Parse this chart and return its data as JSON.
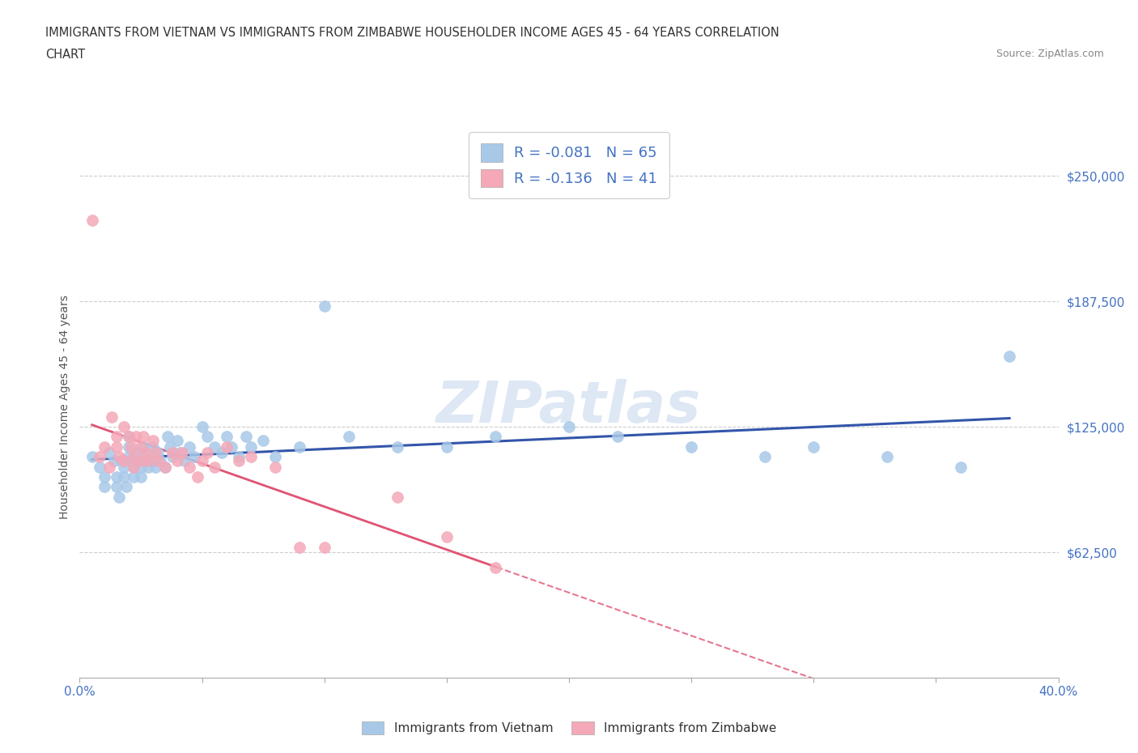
{
  "title_line1": "IMMIGRANTS FROM VIETNAM VS IMMIGRANTS FROM ZIMBABWE HOUSEHOLDER INCOME AGES 45 - 64 YEARS CORRELATION",
  "title_line2": "CHART",
  "source_text": "Source: ZipAtlas.com",
  "ylabel": "Householder Income Ages 45 - 64 years",
  "xlim": [
    0.0,
    0.4
  ],
  "ylim": [
    0,
    270000
  ],
  "color_vietnam": "#a8c8e8",
  "color_zimbabwe": "#f4a8b8",
  "line_color_vietnam": "#3355aa",
  "line_color_zimbabwe": "#e05575",
  "R_vietnam": -0.081,
  "N_vietnam": 65,
  "R_zimbabwe": -0.136,
  "N_zimbabwe": 41,
  "watermark": "ZIPatlas",
  "background_color": "#ffffff",
  "grid_color": "#cccccc",
  "vietnam_x": [
    0.005,
    0.008,
    0.01,
    0.01,
    0.012,
    0.014,
    0.015,
    0.015,
    0.016,
    0.017,
    0.018,
    0.018,
    0.019,
    0.02,
    0.02,
    0.02,
    0.021,
    0.022,
    0.022,
    0.023,
    0.024,
    0.025,
    0.025,
    0.026,
    0.027,
    0.028,
    0.03,
    0.03,
    0.031,
    0.032,
    0.033,
    0.035,
    0.036,
    0.037,
    0.038,
    0.04,
    0.041,
    0.043,
    0.045,
    0.047,
    0.05,
    0.052,
    0.055,
    0.058,
    0.06,
    0.062,
    0.065,
    0.068,
    0.07,
    0.075,
    0.08,
    0.09,
    0.1,
    0.11,
    0.13,
    0.15,
    0.17,
    0.2,
    0.22,
    0.25,
    0.28,
    0.3,
    0.33,
    0.36,
    0.38
  ],
  "vietnam_y": [
    110000,
    105000,
    100000,
    95000,
    112000,
    108000,
    100000,
    95000,
    90000,
    108000,
    105000,
    100000,
    95000,
    120000,
    115000,
    110000,
    108000,
    105000,
    100000,
    112000,
    108000,
    105000,
    100000,
    115000,
    110000,
    105000,
    115000,
    108000,
    105000,
    112000,
    108000,
    105000,
    120000,
    115000,
    110000,
    118000,
    112000,
    108000,
    115000,
    110000,
    125000,
    120000,
    115000,
    112000,
    120000,
    115000,
    110000,
    120000,
    115000,
    118000,
    110000,
    115000,
    185000,
    120000,
    115000,
    115000,
    120000,
    125000,
    120000,
    115000,
    110000,
    115000,
    110000,
    105000,
    160000
  ],
  "zimbabwe_x": [
    0.005,
    0.008,
    0.01,
    0.012,
    0.013,
    0.015,
    0.015,
    0.016,
    0.018,
    0.018,
    0.02,
    0.021,
    0.022,
    0.022,
    0.023,
    0.025,
    0.025,
    0.026,
    0.027,
    0.028,
    0.03,
    0.031,
    0.032,
    0.035,
    0.038,
    0.04,
    0.042,
    0.045,
    0.048,
    0.05,
    0.052,
    0.055,
    0.06,
    0.065,
    0.07,
    0.08,
    0.09,
    0.1,
    0.13,
    0.15,
    0.17
  ],
  "zimbabwe_y": [
    228000,
    110000,
    115000,
    105000,
    130000,
    120000,
    115000,
    110000,
    108000,
    125000,
    120000,
    115000,
    110000,
    105000,
    120000,
    115000,
    108000,
    120000,
    112000,
    108000,
    118000,
    112000,
    108000,
    105000,
    112000,
    108000,
    112000,
    105000,
    100000,
    108000,
    112000,
    105000,
    115000,
    108000,
    110000,
    105000,
    65000,
    65000,
    90000,
    70000,
    55000
  ]
}
